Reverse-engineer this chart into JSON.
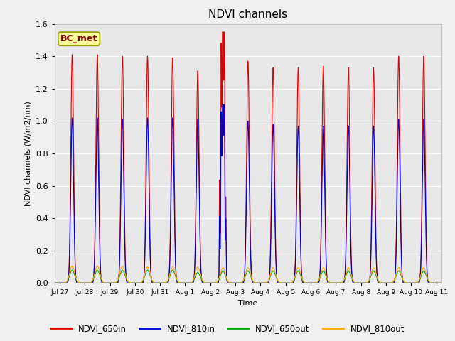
{
  "title": "NDVI channels",
  "ylabel": "NDVI channels (W/m2/nm)",
  "xlabel": "Time",
  "annotation_text": "BC_met",
  "annotation_bgcolor": "#ffff99",
  "annotation_edgecolor": "#999900",
  "plot_bgcolor": "#e8e8e8",
  "fig_bgcolor": "#f0f0f0",
  "colors": {
    "NDVI_650in": "#dd0000",
    "NDVI_810in": "#0000cc",
    "NDVI_650out": "#00aa00",
    "NDVI_810out": "#ffaa00"
  },
  "ylim": [
    0,
    1.6
  ],
  "xlim": [
    -0.2,
    15.2
  ],
  "peak_650in": [
    1.41,
    1.41,
    1.4,
    1.4,
    1.39,
    1.31,
    1.38,
    1.37,
    1.33,
    1.33,
    1.34,
    1.33,
    1.33,
    1.4,
    1.4
  ],
  "peak_810in": [
    1.02,
    1.02,
    1.01,
    1.02,
    1.02,
    1.01,
    1.0,
    1.0,
    0.98,
    0.97,
    0.97,
    0.97,
    0.97,
    1.01,
    1.01
  ],
  "peak_650out": [
    0.08,
    0.08,
    0.08,
    0.08,
    0.08,
    0.065,
    0.075,
    0.075,
    0.075,
    0.075,
    0.075,
    0.075,
    0.075,
    0.075,
    0.075
  ],
  "peak_810out": [
    0.105,
    0.105,
    0.105,
    0.1,
    0.1,
    0.1,
    0.095,
    0.095,
    0.095,
    0.095,
    0.095,
    0.095,
    0.095,
    0.095,
    0.095
  ],
  "tick_positions": [
    0,
    1,
    2,
    3,
    4,
    5,
    6,
    7,
    8,
    9,
    10,
    11,
    12,
    13,
    14,
    15
  ],
  "tick_labels": [
    "Jul 27",
    "Jul 28",
    "Jul 29",
    "Jul 30",
    "Jul 31",
    "Aug 1",
    "Aug 2",
    "Aug 3",
    "Aug 4",
    "Aug 5",
    "Aug 6",
    "Aug 7",
    "Aug 8",
    "Aug 9",
    "Aug 10",
    "Aug 11"
  ],
  "legend_entries": [
    "NDVI_650in",
    "NDVI_810in",
    "NDVI_650out",
    "NDVI_810out"
  ]
}
